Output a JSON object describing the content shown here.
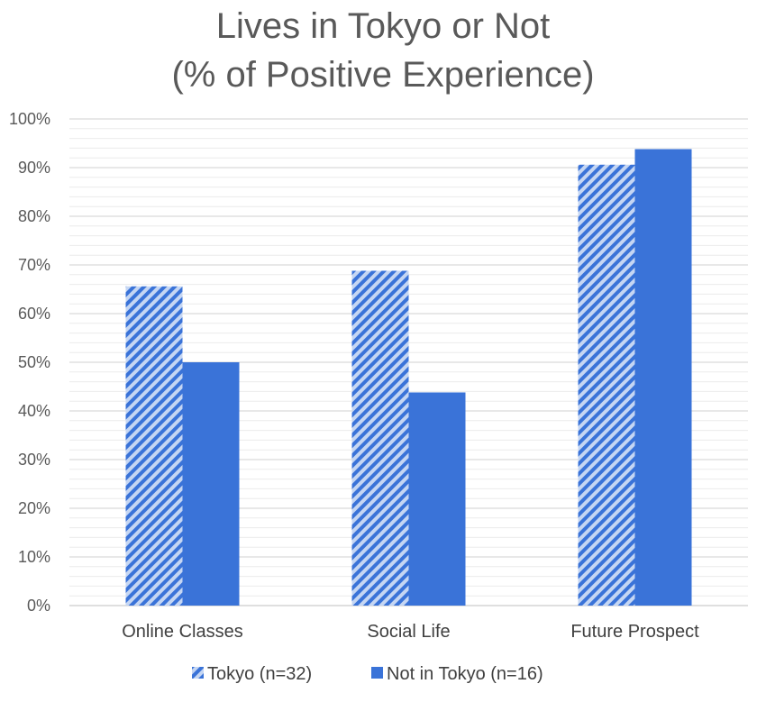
{
  "chart_data": {
    "type": "bar",
    "title": [
      "Lives in Tokyo or Not",
      "(% of Positive Experience)"
    ],
    "categories": [
      "Online Classes",
      "Social Life",
      "Future Prospect"
    ],
    "series": [
      {
        "name": "Tokyo (n=32)",
        "values": [
          65.6,
          68.8,
          90.6
        ],
        "color": "#3a73d8",
        "pattern": "diagonal-stripe"
      },
      {
        "name": "Not in Tokyo (n=16)",
        "values": [
          50.0,
          43.8,
          93.8
        ],
        "color": "#3a73d8",
        "pattern": "solid"
      }
    ],
    "y_ticks": [
      "0%",
      "10%",
      "20%",
      "30%",
      "40%",
      "50%",
      "60%",
      "70%",
      "80%",
      "90%",
      "100%"
    ],
    "ylim": [
      0,
      100
    ],
    "grid": true,
    "legend_position": "bottom"
  }
}
